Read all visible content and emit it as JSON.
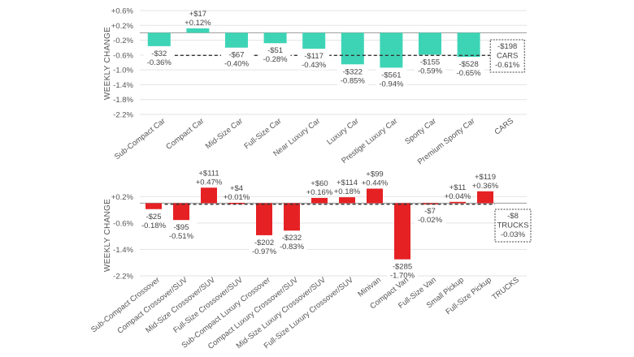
{
  "chart_data": [
    {
      "type": "bar",
      "title": "",
      "xlabel": "",
      "ylabel": "WEEKLY CHANGE",
      "ylim": [
        -2.2,
        0.6
      ],
      "yticks": [
        0.6,
        0.2,
        -0.2,
        -0.6,
        -1.0,
        -1.4,
        -1.8,
        -2.2
      ],
      "ytick_labels": [
        "+0.6%",
        "+0.2%",
        "-0.2%",
        "-0.6%",
        "-1.0%",
        "-1.4%",
        "-1.8%",
        "-2.2%"
      ],
      "grid": true,
      "bar_color": "#3dd4b6",
      "categories": [
        "Sub-Compact Car",
        "Compact Car",
        "Mid-Size Car",
        "Full-Size Car",
        "Near Luxury Car",
        "Luxury Car",
        "Prestige Luxury Car",
        "Sporty Car",
        "Premium Sporty Car",
        "CARS"
      ],
      "values": [
        -0.36,
        0.12,
        -0.4,
        -0.28,
        -0.43,
        -0.85,
        -0.94,
        -0.59,
        -0.65,
        null
      ],
      "dollar_labels": [
        "-$32",
        "+$17",
        "-$67",
        "-$51",
        "-$117",
        "-$322",
        "-$561",
        "-$155",
        "-$528",
        null
      ],
      "pct_labels": [
        "-0.36%",
        "+0.12%",
        "-0.40%",
        "-0.28%",
        "-0.43%",
        "-0.85%",
        "-0.94%",
        "-0.59%",
        "-0.65%",
        null
      ],
      "average": {
        "value": -0.61,
        "lines": [
          "-$198",
          "CARS",
          "-0.61%"
        ],
        "style": "dashed"
      }
    },
    {
      "type": "bar",
      "title": "",
      "xlabel": "",
      "ylabel": "WEEKLY CHANGE",
      "ylim": [
        -2.2,
        0.6
      ],
      "yticks": [
        0.2,
        -0.6,
        -1.4,
        -2.2
      ],
      "ytick_labels": [
        "+0.2%",
        "-0.6%",
        "-1.4%",
        "-2.2%"
      ],
      "grid": true,
      "bar_color": "#e52124",
      "categories": [
        "Sub-Compact Crossover",
        "Compact Crossover/SUV",
        "Mid-Size Crossover/SUV",
        "Full-Size Crossover/SUV",
        "Sub-Compact Luxury Crossover",
        "Compact Luxury Crossover/SUV",
        "Mid-Size Luxury Crossover/SUV",
        "Full-Size Luxury Crossover/SUV",
        "Minivan",
        "Compact Van",
        "Full-Size Van",
        "Small Pickup",
        "Full-Size Pickup",
        "TRUCKS"
      ],
      "values": [
        -0.18,
        -0.51,
        0.47,
        0.01,
        -0.97,
        -0.83,
        0.16,
        0.18,
        0.44,
        -1.7,
        -0.02,
        0.04,
        0.36,
        null
      ],
      "dollar_labels": [
        "-$25",
        "-$95",
        "+$111",
        "+$4",
        "-$202",
        "-$232",
        "+$60",
        "+$114",
        "+$99",
        "-$285",
        "-$7",
        "+$11",
        "+$119",
        null
      ],
      "pct_labels": [
        "-0.18%",
        "-0.51%",
        "+0.47%",
        "+0.01%",
        "-0.97%",
        "-0.83%",
        "+0.16%",
        "+0.18%",
        "+0.44%",
        "-1.70%",
        "-0.02%",
        "+0.04%",
        "+0.36%",
        null
      ],
      "average": {
        "value": -0.03,
        "lines": [
          "-$8",
          "TRUCKS",
          "-0.03%"
        ],
        "style": "dashed"
      }
    }
  ]
}
